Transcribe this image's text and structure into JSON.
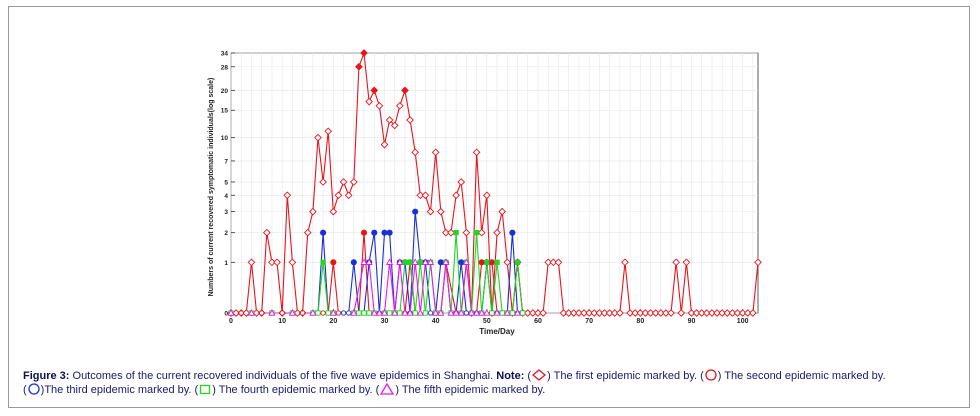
{
  "chart_data": {
    "type": "line",
    "xlabel": "Time/Day",
    "ylabel": "Numbers of current recovered  symptomatic individuals(log scale)",
    "xlim": [
      0,
      103
    ],
    "ylim": [
      0,
      34
    ],
    "y_scale": "log",
    "grid": true,
    "x_ticks": [
      0,
      10,
      20,
      30,
      40,
      50,
      60,
      70,
      80,
      90,
      100
    ],
    "y_ticks": [
      0,
      1,
      2,
      3,
      4,
      5,
      7,
      10,
      15,
      20,
      28,
      34
    ],
    "y_tick_labels": [
      "0",
      "1",
      "2",
      "3",
      "4",
      "5",
      "7",
      "10",
      "15",
      "20",
      "28",
      "34"
    ],
    "series": [
      {
        "name": "The first epidemic",
        "marker": "diamond",
        "color": "#e8141c",
        "x": [
          0,
          1,
          2,
          3,
          4,
          5,
          6,
          7,
          8,
          9,
          10,
          11,
          12,
          13,
          14,
          15,
          16,
          17,
          18,
          19,
          20,
          21,
          22,
          23,
          24,
          25,
          26,
          27,
          28,
          29,
          30,
          31,
          32,
          33,
          34,
          35,
          36,
          37,
          38,
          39,
          40,
          41,
          42,
          43,
          44,
          45,
          46,
          47,
          48,
          49,
          50,
          51,
          52,
          53,
          54,
          55,
          56,
          57,
          58,
          59,
          60,
          61,
          62,
          63,
          64,
          65,
          66,
          67,
          68,
          69,
          70,
          71,
          72,
          73,
          74,
          75,
          76,
          77,
          78,
          79,
          80,
          81,
          82,
          83,
          84,
          85,
          86,
          87,
          88,
          89,
          90,
          91,
          92,
          93,
          94,
          95,
          96,
          97,
          98,
          99,
          100,
          101,
          102,
          103
        ],
        "y": [
          0,
          0,
          0,
          0,
          1,
          0,
          0,
          2,
          1,
          1,
          0,
          4,
          1,
          0,
          0,
          2,
          3,
          10,
          5,
          11,
          3,
          4,
          5,
          4,
          5,
          28,
          34,
          17,
          20,
          16,
          9,
          13,
          12,
          16,
          20,
          13,
          8,
          4,
          4,
          3,
          8,
          3,
          2,
          2,
          4,
          5,
          2,
          0,
          8,
          2,
          4,
          0,
          2,
          3,
          1,
          0,
          1,
          0,
          0,
          0,
          0,
          0,
          1,
          1,
          1,
          0,
          0,
          0,
          0,
          0,
          0,
          0,
          0,
          0,
          0,
          0,
          0,
          1,
          0,
          0,
          0,
          0,
          0,
          0,
          0,
          0,
          0,
          1,
          0,
          1,
          0,
          0,
          0,
          0,
          0,
          0,
          0,
          0,
          0,
          0,
          0,
          0,
          0,
          1
        ]
      },
      {
        "name": "The second epidemic",
        "marker": "circle",
        "color": "#e8141c",
        "x": [
          0,
          2,
          4,
          6,
          8,
          10,
          12,
          14,
          16,
          18,
          19,
          20,
          21,
          22,
          24,
          25,
          26,
          27,
          28,
          30,
          32,
          34,
          35,
          36,
          38,
          40,
          41,
          42,
          44,
          46,
          47,
          48,
          49,
          50,
          51,
          52,
          53,
          54,
          55,
          56,
          57
        ],
        "y": [
          0,
          0,
          0,
          0,
          0,
          0,
          0,
          0,
          0,
          0,
          0,
          1,
          0,
          0,
          0,
          0,
          2,
          0,
          0,
          0,
          0,
          0,
          1,
          0,
          0,
          0,
          0,
          1,
          0,
          0,
          0,
          0,
          1,
          1,
          1,
          0,
          0,
          0,
          0,
          1,
          0
        ]
      },
      {
        "name": "The third epidemic",
        "marker": "circle",
        "color": "#1a2fd6",
        "x": [
          0,
          4,
          8,
          12,
          16,
          17,
          18,
          19,
          20,
          22,
          23,
          24,
          25,
          26,
          27,
          28,
          29,
          30,
          31,
          32,
          33,
          34,
          35,
          36,
          37,
          38,
          39,
          40,
          41,
          42,
          43,
          44,
          45,
          46,
          47,
          48,
          49,
          50,
          51,
          52,
          53,
          54,
          55,
          56,
          57
        ],
        "y": [
          0,
          0,
          0,
          0,
          0,
          0,
          2,
          0,
          0,
          0,
          0,
          1,
          0,
          0,
          1,
          2,
          0,
          2,
          2,
          0,
          1,
          1,
          0,
          3,
          1,
          1,
          0,
          0,
          1,
          1,
          0,
          0,
          1,
          0,
          0,
          0,
          0,
          1,
          0,
          0,
          0,
          0,
          2,
          0,
          0
        ]
      },
      {
        "name": "The fourth epidemic",
        "marker": "square",
        "color": "#22d622",
        "x": [
          0,
          4,
          8,
          12,
          16,
          17,
          18,
          19,
          20,
          24,
          25,
          26,
          27,
          28,
          30,
          31,
          32,
          33,
          34,
          35,
          36,
          37,
          38,
          39,
          40,
          41,
          42,
          43,
          44,
          45,
          46,
          47,
          48,
          49,
          50,
          51,
          52,
          53,
          54,
          55,
          56,
          57
        ],
        "y": [
          0,
          0,
          0,
          0,
          0,
          0,
          1,
          0,
          0,
          0,
          0,
          0,
          0,
          0,
          0,
          0,
          0,
          0,
          1,
          1,
          0,
          1,
          0,
          1,
          0,
          0,
          1,
          0,
          2,
          0,
          1,
          0,
          2,
          0,
          1,
          0,
          1,
          0,
          0,
          0,
          1,
          0
        ]
      },
      {
        "name": "The fifth epidemic",
        "marker": "triangle",
        "color": "#e81ce8",
        "x": [
          0,
          4,
          8,
          12,
          16,
          20,
          24,
          26,
          27,
          28,
          29,
          30,
          31,
          32,
          33,
          34,
          35,
          36,
          37,
          38,
          39,
          40,
          41,
          42,
          43,
          44,
          45,
          46,
          47,
          48,
          49,
          50,
          52,
          54,
          56
        ],
        "y": [
          0,
          0,
          0,
          0,
          0,
          0,
          0,
          1,
          1,
          0,
          0,
          0,
          1,
          0,
          1,
          0,
          0,
          1,
          0,
          1,
          1,
          0,
          0,
          1,
          0,
          0,
          0,
          1,
          0,
          0,
          0,
          0,
          0,
          0,
          0
        ]
      }
    ]
  },
  "caption": {
    "label": "Figure 3:",
    "text1": " Outcomes of the current recovered individuals of the five wave epidemics in Shanghai. ",
    "note_label": "Note:",
    "p1_open": " (",
    "p1_text": ") The first epidemic marked by. (",
    "p2_text": ") The second epidemic marked by.",
    "p3_open": "(",
    "p3_text": ")The third epidemic marked by. (",
    "p4_text": ") The fourth epidemic marked by. (",
    "p5_text": ") The fifth epidemic marked by."
  },
  "colors": {
    "first": "#e8141c",
    "second": "#e8141c",
    "third": "#1a2fd6",
    "fourth": "#22d622",
    "fifth": "#e81ce8",
    "caption_text": "#1a1a6e"
  }
}
